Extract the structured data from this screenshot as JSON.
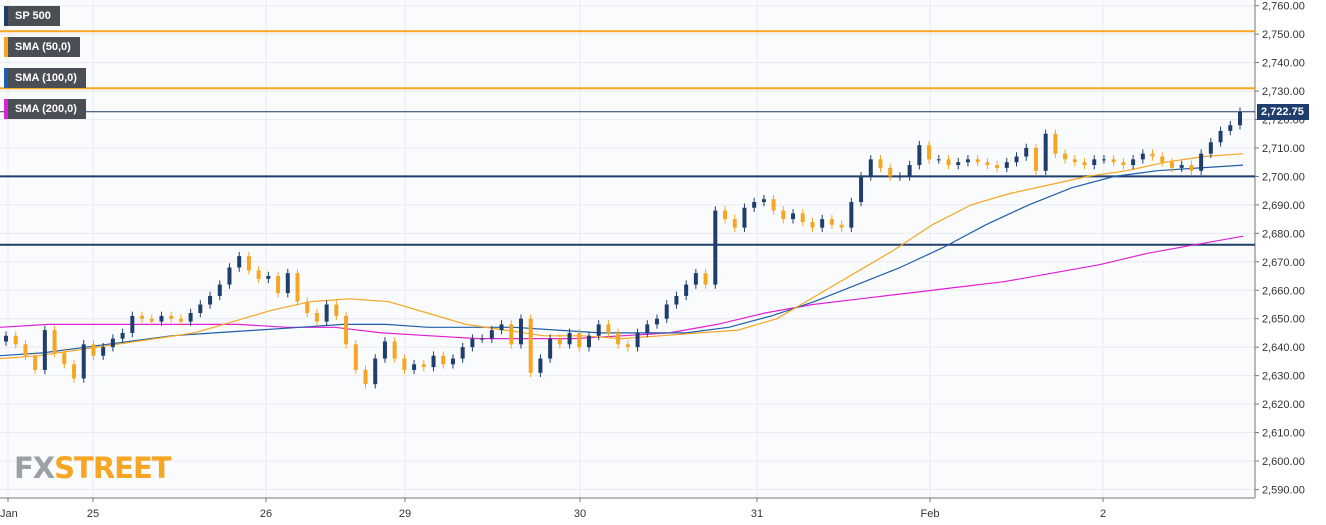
{
  "legend": [
    {
      "label": "SP 500",
      "color": "#1f3e6c"
    },
    {
      "label": "SMA (50,0)",
      "color": "#f6a623"
    },
    {
      "label": "SMA (100,0)",
      "color": "#1f5fa8"
    },
    {
      "label": "SMA (200,0)",
      "color": "#e020d6"
    }
  ],
  "price_tag": "2,722.75",
  "logo": {
    "prefix": "FX",
    "suffix": "STREET"
  },
  "chart_data": {
    "type": "line",
    "x_ticks": [
      "Jan",
      "25",
      "26",
      "29",
      "30",
      "31",
      "Feb",
      "2"
    ],
    "y_ticks": [
      "2,590.00",
      "2,600.00",
      "2,610.00",
      "2,620.00",
      "2,630.00",
      "2,640.00",
      "2,650.00",
      "2,660.00",
      "2,670.00",
      "2,680.00",
      "2,690.00",
      "2,700.00",
      "2,710.00",
      "2,720.00",
      "2,730.00",
      "2,740.00",
      "2,750.00",
      "2,760.00"
    ],
    "ylim": [
      2587,
      2762
    ],
    "horizontal_levels": [
      {
        "value": 2751,
        "color": "#f6a623"
      },
      {
        "value": 2731,
        "color": "#f6a623"
      },
      {
        "value": 2700,
        "color": "#1f3e6c"
      },
      {
        "value": 2676,
        "color": "#1f3e6c"
      },
      {
        "value": 2722.75,
        "color": "#1f3e6c"
      }
    ],
    "series": [
      {
        "name": "SP 500",
        "color": "#1f3e6c",
        "values": [
          2644,
          2641,
          2637,
          2632,
          2646,
          2638,
          2634,
          2629,
          2641,
          2637,
          2640,
          2643,
          2645,
          2651,
          2650,
          2649,
          2651,
          2650,
          2649,
          2652,
          2655,
          2658,
          2662,
          2668,
          2672,
          2667,
          2664,
          2665,
          2659,
          2666,
          2656,
          2652,
          2649,
          2655,
          2651,
          2641,
          2632,
          2627,
          2636,
          2642,
          2636,
          2632,
          2634,
          2633,
          2637,
          2634,
          2636,
          2640,
          2643,
          2643,
          2646,
          2648,
          2641,
          2650,
          2631,
          2636,
          2643,
          2641,
          2645,
          2640,
          2644,
          2648,
          2645,
          2641,
          2640,
          2645,
          2648,
          2650,
          2655,
          2658,
          2662,
          2666,
          2662,
          2688,
          2685,
          2682,
          2689,
          2691,
          2692,
          2688,
          2685,
          2687,
          2684,
          2682,
          2685,
          2683,
          2682,
          2691,
          2700,
          2706,
          2703,
          2700,
          2700,
          2704,
          2711,
          2706,
          2706,
          2704,
          2705,
          2706,
          2705,
          2704,
          2703,
          2705,
          2707,
          2710,
          2702,
          2715,
          2708,
          2706,
          2705,
          2704,
          2706,
          2706,
          2705,
          2704,
          2706,
          2708,
          2707,
          2705,
          2703,
          2704,
          2702,
          2708,
          2712,
          2716,
          2718,
          2722.75
        ]
      },
      {
        "name": "SMA (50,0)",
        "color": "#f6a623",
        "values": [
          2636,
          2637,
          2639,
          2641,
          2643,
          2645,
          2649,
          2653,
          2656,
          2657,
          2656,
          2652,
          2648,
          2646,
          2644,
          2644,
          2643,
          2644,
          2645,
          2646,
          2650,
          2658,
          2666,
          2674,
          2683,
          2690,
          2694,
          2697,
          2700,
          2702,
          2705,
          2707,
          2708
        ]
      },
      {
        "name": "SMA (100,0)",
        "color": "#1f5fa8",
        "values": [
          2637,
          2638,
          2640,
          2642,
          2644,
          2645,
          2646,
          2647,
          2648,
          2648,
          2647,
          2647,
          2647,
          2646,
          2645,
          2645,
          2645,
          2647,
          2651,
          2656,
          2662,
          2668,
          2675,
          2683,
          2690,
          2696,
          2700,
          2702,
          2703,
          2704
        ]
      },
      {
        "name": "SMA (200,0)",
        "color": "#e020d6",
        "values": [
          2647,
          2648,
          2648,
          2648,
          2648,
          2648,
          2647,
          2647,
          2645,
          2644,
          2643,
          2643,
          2643,
          2644,
          2645,
          2648,
          2652,
          2655,
          2657,
          2659,
          2661,
          2663,
          2666,
          2669,
          2673,
          2676,
          2679
        ]
      }
    ]
  }
}
